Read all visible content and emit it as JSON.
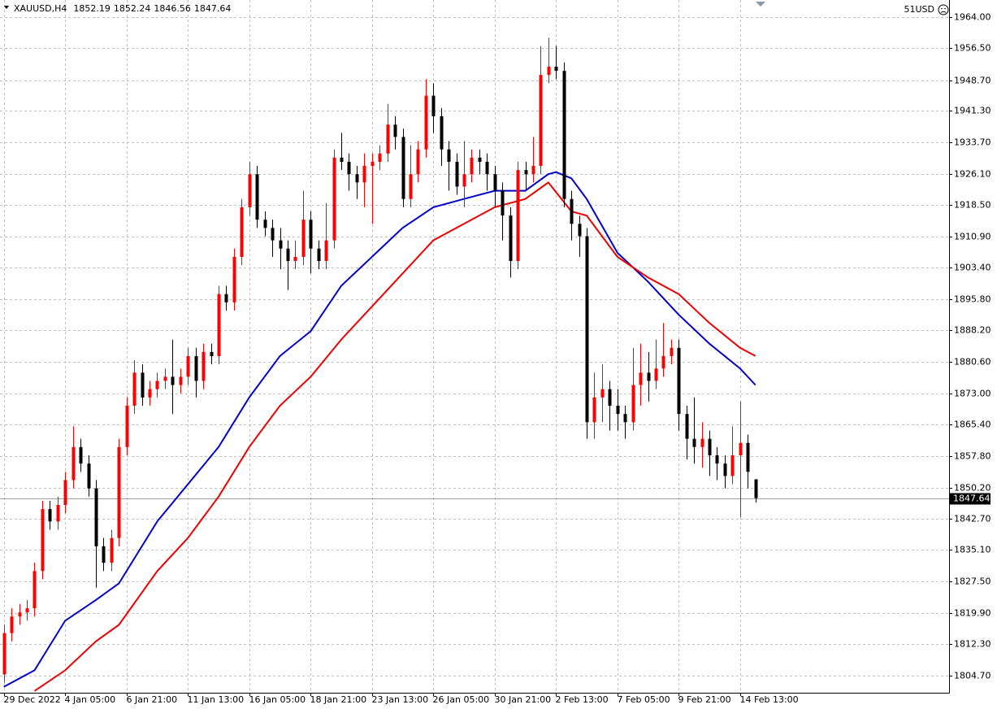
{
  "chart_data": {
    "type": "candlestick",
    "title": "XAUUSD,H4",
    "account_label": "51USD",
    "up_color": "#ff0000",
    "down_color": "#000000",
    "grid": true,
    "xlim": [
      -1,
      246.5
    ],
    "ylim": [
      1800.57,
      1968.13
    ],
    "xticks": [
      {
        "value": 0,
        "label": "29 Dec 2022"
      },
      {
        "value": 16,
        "label": "4 Jan 05:00"
      },
      {
        "value": 32,
        "label": "6 Jan 21:00"
      },
      {
        "value": 48,
        "label": "11 Jan 13:00"
      },
      {
        "value": 64,
        "label": "16 Jan 05:00"
      },
      {
        "value": 80,
        "label": "18 Jan 21:00"
      },
      {
        "value": 96,
        "label": "23 Jan 13:00"
      },
      {
        "value": 112,
        "label": "26 Jan 05:00"
      },
      {
        "value": 128,
        "label": "30 Jan 21:00"
      },
      {
        "value": 144,
        "label": "2 Feb 13:00"
      },
      {
        "value": 160,
        "label": "7 Feb 05:00"
      },
      {
        "value": 176,
        "label": "9 Feb 21:00"
      },
      {
        "value": 192,
        "label": "14 Feb 13:00"
      }
    ],
    "yticks": [
      {
        "value": 1964.0,
        "label": "1964.00"
      },
      {
        "value": 1956.5,
        "label": "1956.50"
      },
      {
        "value": 1948.7,
        "label": "1948.70"
      },
      {
        "value": 1941.3,
        "label": "1941.30"
      },
      {
        "value": 1933.7,
        "label": "1933.70"
      },
      {
        "value": 1926.1,
        "label": "1926.10"
      },
      {
        "value": 1918.5,
        "label": "1918.50"
      },
      {
        "value": 1910.9,
        "label": "1910.90"
      },
      {
        "value": 1903.4,
        "label": "1903.40"
      },
      {
        "value": 1895.8,
        "label": "1895.80"
      },
      {
        "value": 1888.2,
        "label": "1888.20"
      },
      {
        "value": 1880.6,
        "label": "1880.60"
      },
      {
        "value": 1873.0,
        "label": "1873.00"
      },
      {
        "value": 1865.4,
        "label": "1865.40"
      },
      {
        "value": 1857.8,
        "label": "1857.80"
      },
      {
        "value": 1850.2,
        "label": "1850.20"
      },
      {
        "value": 1842.7,
        "label": "1842.70"
      },
      {
        "value": 1835.1,
        "label": "1835.10"
      },
      {
        "value": 1827.5,
        "label": "1827.50"
      },
      {
        "value": 1819.9,
        "label": "1819.90"
      },
      {
        "value": 1812.3,
        "label": "1812.30"
      },
      {
        "value": 1804.7,
        "label": "1804.70"
      }
    ],
    "x": [
      0,
      2,
      4,
      6,
      8,
      10,
      12,
      14,
      16,
      18,
      20,
      22,
      24,
      26,
      28,
      30,
      32,
      34,
      36,
      38,
      40,
      42,
      44,
      46,
      48,
      50,
      52,
      54,
      56,
      58,
      60,
      62,
      64,
      66,
      68,
      70,
      72,
      74,
      76,
      78,
      80,
      82,
      84,
      86,
      88,
      90,
      92,
      94,
      96,
      98,
      100,
      102,
      104,
      106,
      108,
      110,
      112,
      114,
      116,
      118,
      120,
      122,
      124,
      126,
      128,
      130,
      132,
      134,
      136,
      138,
      140,
      142,
      144,
      146,
      148,
      150,
      152,
      154,
      156,
      158,
      160,
      162,
      164,
      166,
      168,
      170,
      172,
      174,
      176,
      178,
      180,
      182,
      184,
      186,
      188,
      190,
      192,
      194,
      196
    ],
    "open": [
      1805,
      1815,
      1819,
      1820,
      1821,
      1830,
      1845,
      1842,
      1846,
      1852,
      1860,
      1856,
      1850,
      1836,
      1832,
      1838,
      1860,
      1870,
      1878,
      1872,
      1874,
      1876,
      1877,
      1875,
      1877,
      1882,
      1876,
      1883,
      1882,
      1897,
      1895,
      1906,
      1918,
      1926,
      1915,
      1913,
      1910,
      1908,
      1905,
      1906,
      1915,
      1908,
      1905,
      1910,
      1930,
      1929,
      1926,
      1924,
      1928,
      1929,
      1931,
      1938,
      1935,
      1920,
      1926,
      1932,
      1945,
      1940,
      1932,
      1929,
      1923,
      1926,
      1930,
      1929,
      1926,
      1922,
      1916,
      1905,
      1927,
      1926,
      1928,
      1950,
      1952,
      1951,
      1920,
      1914,
      1911,
      1866,
      1872,
      1874,
      1870,
      1868,
      1866,
      1875,
      1878,
      1876,
      1879,
      1882,
      1884,
      1868,
      1862,
      1860,
      1862,
      1858,
      1856,
      1853,
      1858,
      1861,
      1852.19
    ],
    "high": [
      1817,
      1821,
      1822,
      1823,
      1832,
      1847,
      1847,
      1848,
      1854,
      1865,
      1862,
      1858,
      1852,
      1838,
      1840,
      1862,
      1872,
      1881,
      1880,
      1876,
      1878,
      1879,
      1886,
      1879,
      1884,
      1884,
      1885,
      1885,
      1899,
      1899,
      1908,
      1920,
      1929,
      1928,
      1917,
      1915,
      1913,
      1910,
      1910,
      1922,
      1917,
      1910,
      1919,
      1932,
      1936,
      1931,
      1928,
      1931,
      1931,
      1933,
      1943,
      1940,
      1937,
      1933,
      1934,
      1949,
      1948,
      1942,
      1934,
      1931,
      1934,
      1932,
      1932,
      1931,
      1928,
      1924,
      1918,
      1929,
      1929,
      1935,
      1957,
      1959,
      1957,
      1953,
      1922,
      1916,
      1913,
      1878,
      1880,
      1876,
      1874,
      1870,
      1884,
      1885,
      1883,
      1886,
      1890,
      1886,
      1886,
      1870,
      1872,
      1866,
      1864,
      1860,
      1858,
      1865,
      1871,
      1863,
      1852.24
    ],
    "low": [
      1803,
      1813,
      1817,
      1818,
      1819,
      1828,
      1840,
      1840,
      1844,
      1850,
      1854,
      1848,
      1826,
      1830,
      1830,
      1836,
      1858,
      1868,
      1870,
      1870,
      1872,
      1874,
      1868,
      1873,
      1875,
      1872,
      1874,
      1880,
      1880,
      1893,
      1893,
      1904,
      1916,
      1913,
      1911,
      1906,
      1903,
      1898,
      1903,
      1904,
      1902,
      1903,
      1903,
      1908,
      1927,
      1922,
      1920,
      1918,
      1914,
      1927,
      1929,
      1932,
      1918,
      1918,
      1924,
      1930,
      1936,
      1928,
      1922,
      1921,
      1918,
      1924,
      1926,
      1922,
      1918,
      1910,
      1901,
      1903,
      1922,
      1924,
      1926,
      1948,
      1949,
      1918,
      1910,
      1906,
      1862,
      1862,
      1866,
      1864,
      1864,
      1862,
      1864,
      1870,
      1871,
      1874,
      1877,
      1880,
      1864,
      1857,
      1856,
      1855,
      1853,
      1852,
      1850,
      1851,
      1843,
      1850,
      1846.56
    ],
    "close": [
      1815,
      1819,
      1820,
      1821,
      1830,
      1845,
      1842,
      1846,
      1852,
      1860,
      1856,
      1850,
      1836,
      1832,
      1838,
      1860,
      1870,
      1878,
      1872,
      1874,
      1876,
      1877,
      1875,
      1877,
      1882,
      1876,
      1883,
      1882,
      1897,
      1895,
      1906,
      1918,
      1926,
      1915,
      1913,
      1910,
      1908,
      1905,
      1906,
      1915,
      1908,
      1905,
      1910,
      1930,
      1929,
      1926,
      1924,
      1928,
      1929,
      1931,
      1938,
      1935,
      1920,
      1926,
      1932,
      1945,
      1940,
      1932,
      1929,
      1923,
      1926,
      1930,
      1929,
      1926,
      1922,
      1916,
      1905,
      1927,
      1926,
      1928,
      1950,
      1952,
      1951,
      1920,
      1914,
      1911,
      1866,
      1872,
      1874,
      1870,
      1868,
      1866,
      1875,
      1878,
      1876,
      1879,
      1882,
      1884,
      1868,
      1862,
      1860,
      1862,
      1858,
      1856,
      1853,
      1858,
      1861,
      1854,
      1847.64
    ],
    "series": [
      {
        "color": "#0000cc",
        "x": [
          0,
          8,
          16,
          24,
          30,
          40,
          48,
          56,
          64,
          72,
          80,
          88,
          96,
          104,
          112,
          120,
          128,
          136,
          142,
          144,
          148,
          152,
          160,
          168,
          176,
          184,
          192,
          196
        ],
        "values": [
          1802,
          1806,
          1818,
          1823,
          1827,
          1842,
          1851,
          1860,
          1872,
          1882,
          1888,
          1899,
          1906,
          1913,
          1918,
          1920,
          1922,
          1922,
          1926,
          1926.5,
          1925,
          1920,
          1907,
          1900,
          1892,
          1885,
          1879,
          1875
        ]
      },
      {
        "color": "#ee0000",
        "x": [
          8,
          16,
          24,
          30,
          40,
          48,
          56,
          64,
          72,
          80,
          88,
          96,
          104,
          112,
          120,
          128,
          136,
          142,
          148,
          152,
          160,
          168,
          176,
          184,
          192,
          196
        ],
        "values": [
          1801,
          1806,
          1813,
          1817,
          1830,
          1838,
          1848,
          1860,
          1870,
          1877,
          1886,
          1894,
          1902,
          1910,
          1914,
          1918,
          1920,
          1924,
          1917,
          1916,
          1906,
          1901,
          1897,
          1890,
          1884,
          1882
        ]
      }
    ]
  }
}
